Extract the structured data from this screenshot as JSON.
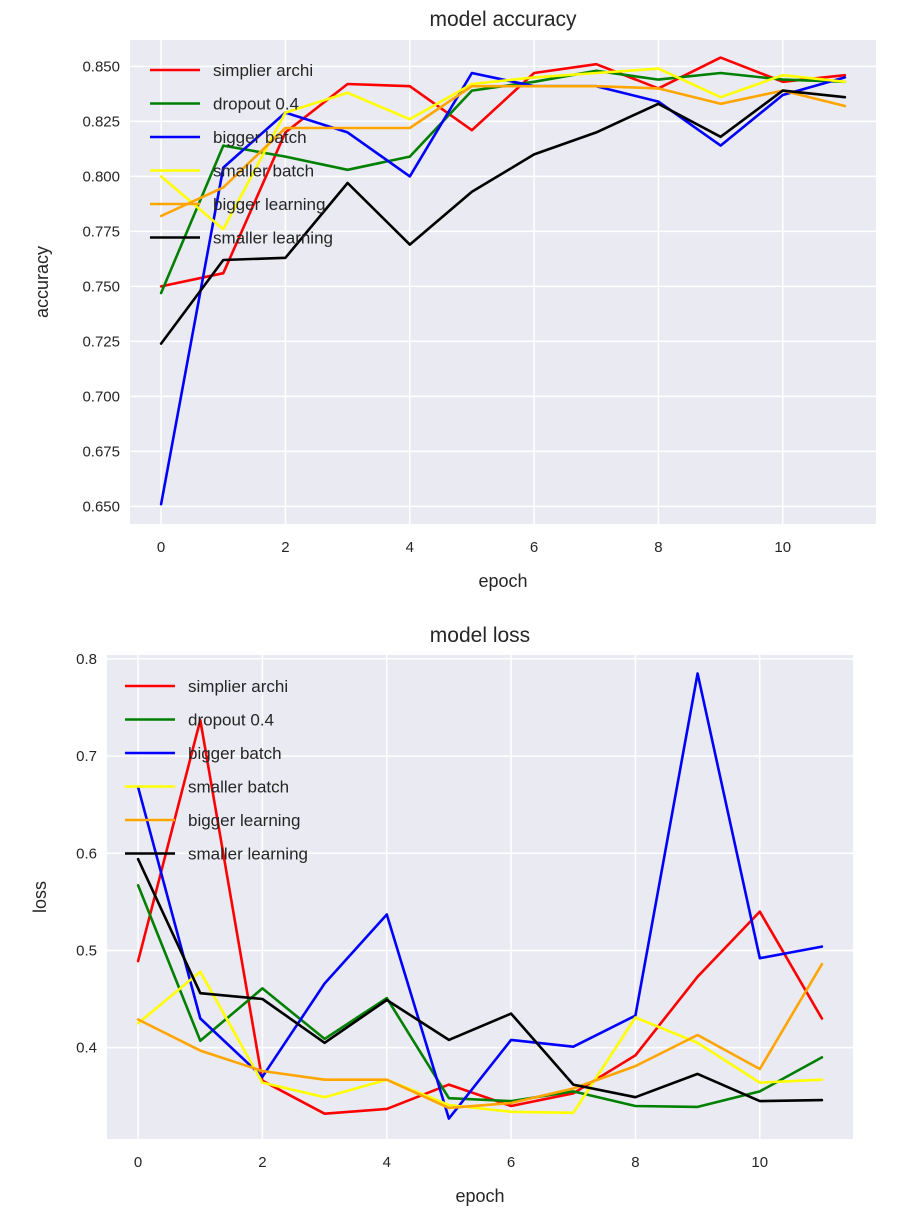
{
  "colors": {
    "plot_background": "#eaeaf2",
    "grid": "#ffffff",
    "text": "#262626"
  },
  "chart_data": [
    {
      "type": "line",
      "title": "model accuracy",
      "xlabel": "epoch",
      "ylabel": "accuracy",
      "xlim": [
        -0.5,
        11.5
      ],
      "ylim": [
        0.642,
        0.862
      ],
      "xticks": [
        0,
        2,
        4,
        6,
        8,
        10
      ],
      "yticks": [
        0.65,
        0.675,
        0.7,
        0.725,
        0.75,
        0.775,
        0.8,
        0.825,
        0.85
      ],
      "ytick_labels": [
        "0.650",
        "0.675",
        "0.700",
        "0.725",
        "0.750",
        "0.775",
        "0.800",
        "0.825",
        "0.850"
      ],
      "grid": true,
      "legend_position": "top-left",
      "x": [
        0,
        1,
        2,
        3,
        4,
        5,
        6,
        7,
        8,
        9,
        10,
        11
      ],
      "series": [
        {
          "name": "simplier archi",
          "color": "#ff0000",
          "values": [
            0.75,
            0.756,
            0.82,
            0.842,
            0.841,
            0.821,
            0.847,
            0.851,
            0.84,
            0.854,
            0.843,
            0.846
          ]
        },
        {
          "name": "dropout 0.4",
          "color": "#008000",
          "values": [
            0.747,
            0.814,
            0.809,
            0.803,
            0.809,
            0.839,
            0.843,
            0.848,
            0.844,
            0.847,
            0.844,
            0.843
          ]
        },
        {
          "name": "bigger batch",
          "color": "#0000ff",
          "values": [
            0.651,
            0.804,
            0.829,
            0.82,
            0.8,
            0.847,
            0.841,
            0.841,
            0.834,
            0.814,
            0.837,
            0.845
          ]
        },
        {
          "name": "smaller batch",
          "color": "#ffff00",
          "values": [
            0.8,
            0.776,
            0.829,
            0.838,
            0.826,
            0.842,
            0.845,
            0.847,
            0.849,
            0.836,
            0.846,
            0.843
          ]
        },
        {
          "name": "bigger learning",
          "color": "#ffa500",
          "values": [
            0.782,
            0.795,
            0.822,
            0.822,
            0.822,
            0.841,
            0.841,
            0.841,
            0.84,
            0.833,
            0.839,
            0.832
          ]
        },
        {
          "name": "smaller learning",
          "color": "#000000",
          "values": [
            0.724,
            0.762,
            0.763,
            0.797,
            0.769,
            0.793,
            0.81,
            0.82,
            0.833,
            0.818,
            0.839,
            0.836
          ]
        }
      ]
    },
    {
      "type": "line",
      "title": "model loss",
      "xlabel": "epoch",
      "ylabel": "loss",
      "xlim": [
        -0.5,
        11.5
      ],
      "ylim": [
        0.306,
        0.804
      ],
      "xticks": [
        0,
        2,
        4,
        6,
        8,
        10
      ],
      "yticks": [
        0.4,
        0.5,
        0.6,
        0.7,
        0.8
      ],
      "ytick_labels": [
        "0.4",
        "0.5",
        "0.6",
        "0.7",
        "0.8"
      ],
      "grid": true,
      "legend_position": "top-left",
      "x": [
        0,
        1,
        2,
        3,
        4,
        5,
        6,
        7,
        8,
        9,
        10,
        11
      ],
      "series": [
        {
          "name": "simplier archi",
          "color": "#ff0000",
          "values": [
            0.489,
            0.737,
            0.366,
            0.332,
            0.337,
            0.362,
            0.34,
            0.353,
            0.392,
            0.473,
            0.54,
            0.43
          ]
        },
        {
          "name": "dropout 0.4",
          "color": "#008000",
          "values": [
            0.567,
            0.407,
            0.461,
            0.409,
            0.451,
            0.348,
            0.345,
            0.355,
            0.34,
            0.339,
            0.355,
            0.39
          ]
        },
        {
          "name": "bigger batch",
          "color": "#0000ff",
          "values": [
            0.668,
            0.43,
            0.37,
            0.466,
            0.537,
            0.327,
            0.408,
            0.401,
            0.433,
            0.785,
            0.492,
            0.504
          ]
        },
        {
          "name": "smaller batch",
          "color": "#ffff00",
          "values": [
            0.425,
            0.478,
            0.364,
            0.349,
            0.367,
            0.341,
            0.334,
            0.333,
            0.431,
            0.405,
            0.364,
            0.367
          ]
        },
        {
          "name": "bigger learning",
          "color": "#ffa500",
          "values": [
            0.429,
            0.397,
            0.376,
            0.367,
            0.367,
            0.338,
            0.343,
            0.358,
            0.381,
            0.413,
            0.378,
            0.486
          ]
        },
        {
          "name": "smaller learning",
          "color": "#000000",
          "values": [
            0.594,
            0.456,
            0.45,
            0.405,
            0.449,
            0.408,
            0.435,
            0.362,
            0.349,
            0.373,
            0.345,
            0.346
          ]
        }
      ]
    }
  ]
}
